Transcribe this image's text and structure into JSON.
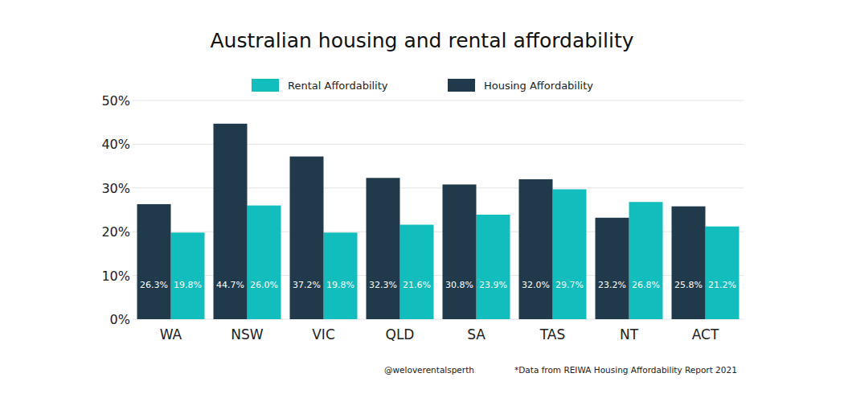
{
  "chart_data": {
    "type": "bar",
    "title": "Australian housing and rental affordability",
    "categories": [
      "WA",
      "NSW",
      "VIC",
      "QLD",
      "SA",
      "TAS",
      "NT",
      "ACT"
    ],
    "series": [
      {
        "name": "Rental Affordability",
        "color": "#12bdbd",
        "values": [
          19.8,
          26.0,
          19.8,
          21.6,
          23.9,
          29.7,
          26.8,
          21.2
        ],
        "value_labels": [
          "19.8%",
          "26.0%",
          "19.8%",
          "21.6%",
          "23.9%",
          "29.7%",
          "26.8%",
          "21.2%"
        ]
      },
      {
        "name": "Housing Affordability",
        "color": "#213a4b",
        "values": [
          26.3,
          44.7,
          37.2,
          32.3,
          30.8,
          32.0,
          23.2,
          25.8
        ],
        "value_labels": [
          "26.3%",
          "44.7%",
          "37.2%",
          "32.3%",
          "30.8%",
          "32.0%",
          "23.2%",
          "25.8%"
        ]
      }
    ],
    "ylim": [
      0,
      50
    ],
    "yticks": [
      {
        "value": 0,
        "label": "0%"
      },
      {
        "value": 10,
        "label": "10%"
      },
      {
        "value": 20,
        "label": "20%"
      },
      {
        "value": 30,
        "label": "30%"
      },
      {
        "value": 40,
        "label": "40%"
      },
      {
        "value": 50,
        "label": "50%"
      }
    ],
    "grid": true,
    "legend": "top",
    "data_labels": true,
    "annotations": [
      "@weloverentalsperth",
      "*Data from REIWA Housing Affordability Report 2021"
    ]
  }
}
